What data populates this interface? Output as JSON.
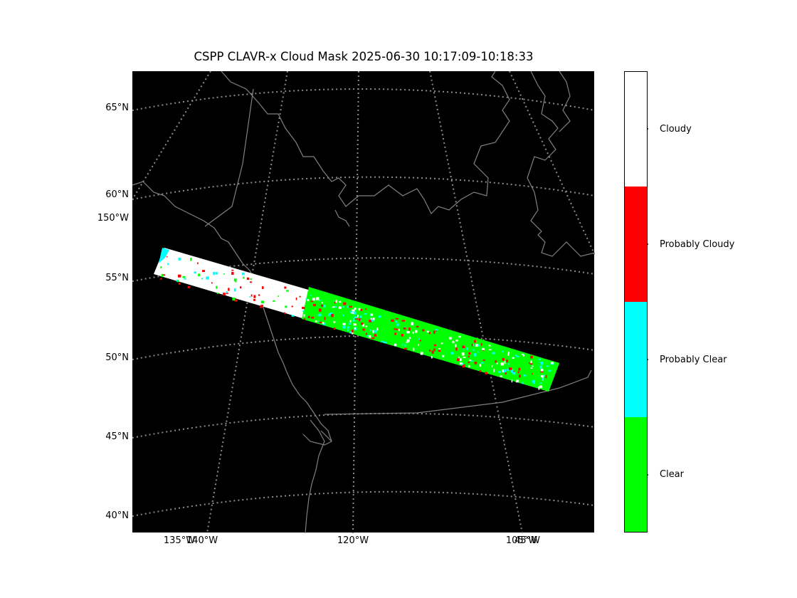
{
  "title": "CSPP CLAVR-x Cloud Mask 2025-06-30 10:17:09-10:18:33",
  "lat_labels": [
    "65°N",
    "60°N",
    "55°N",
    "50°N",
    "45°N",
    "40°N"
  ],
  "lon_labels": [
    "150°W",
    "135°W",
    "140°W",
    "120°W",
    "105°W",
    "45°W"
  ],
  "colorbar": {
    "categories": [
      {
        "label": "Clear",
        "color": "#00ff00"
      },
      {
        "label": "Probably Clear",
        "color": "#00ffff"
      },
      {
        "label": "Probably Cloudy",
        "color": "#ff0000"
      },
      {
        "label": "Cloudy",
        "color": "#ffffff"
      }
    ]
  },
  "colors": {
    "background": "#000000",
    "coastline": "#808080",
    "graticule": "#8c8c8c"
  }
}
